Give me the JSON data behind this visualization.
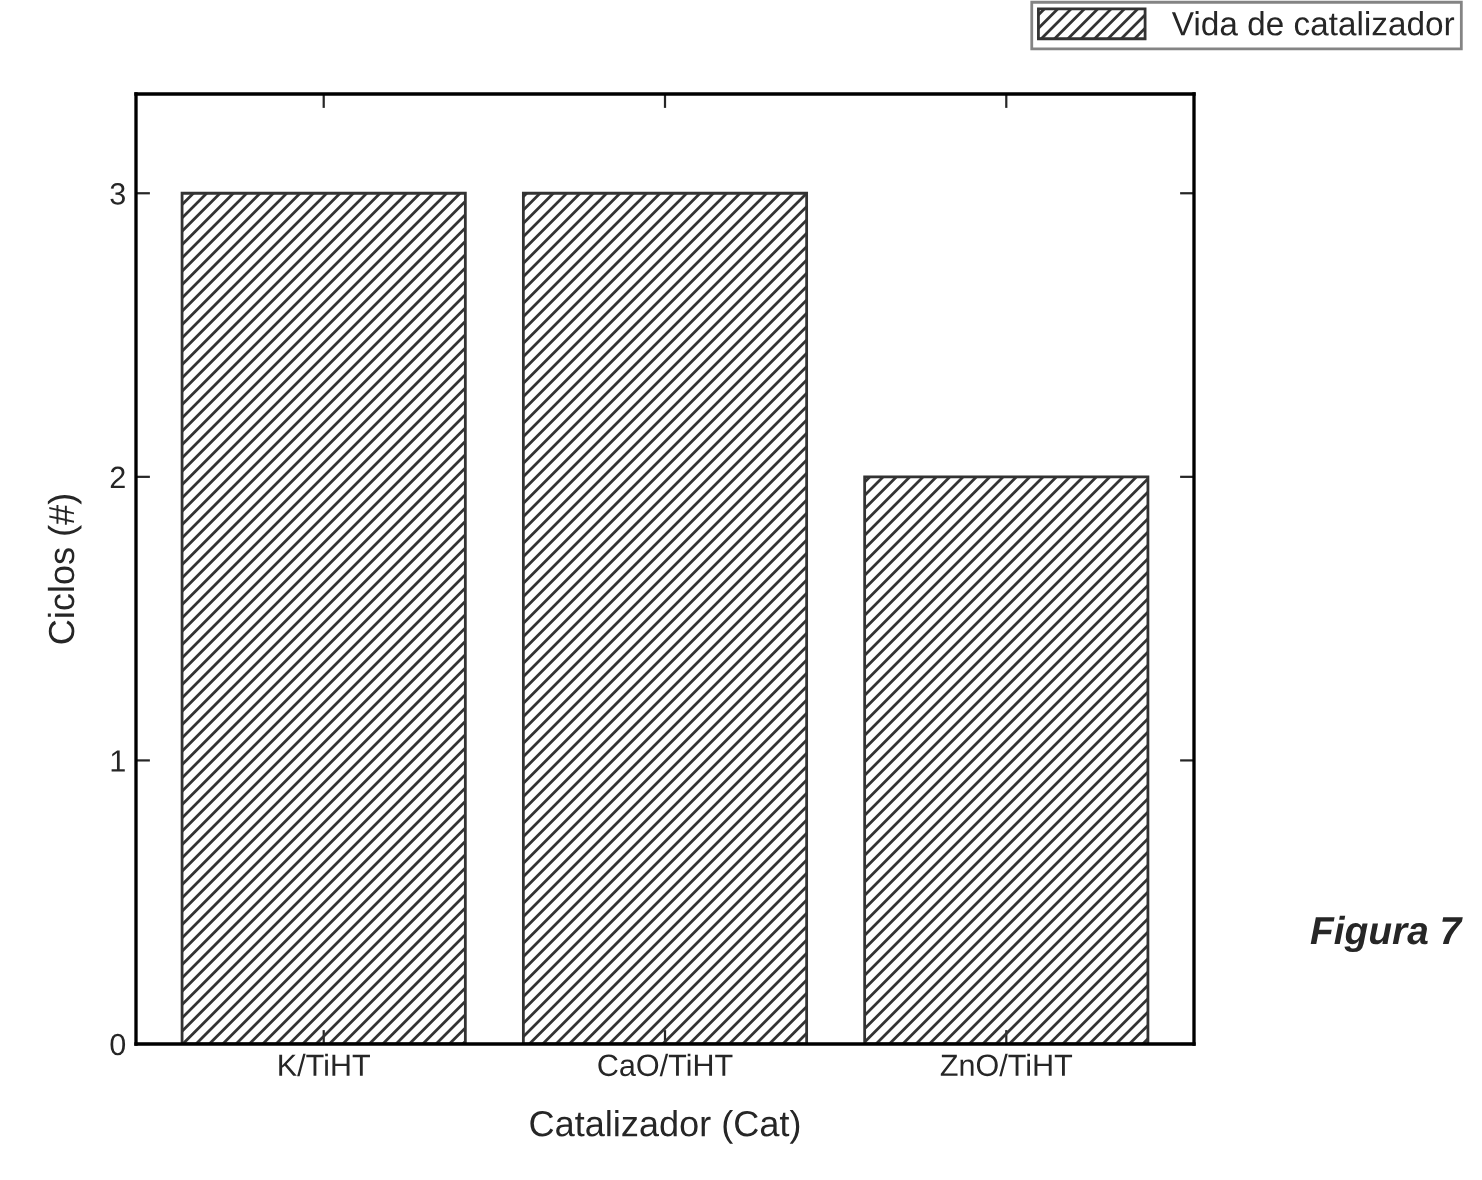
{
  "chart_data": {
    "type": "bar",
    "xlabel": "Catalizador (Cat)",
    "ylabel": "Ciclos (#)",
    "categories": [
      "K/TiHT",
      "CaO/TiHT",
      "ZnO/TiHT"
    ],
    "series": [
      {
        "name": "Vida de catalizador",
        "color": "#333333",
        "values": [
          3,
          3,
          2
        ]
      }
    ],
    "ylim": [
      0,
      3.35
    ],
    "yticks": [
      0,
      1,
      2,
      3
    ],
    "grid": false,
    "legend": "top right",
    "annotations": [
      "Figura 7"
    ]
  }
}
